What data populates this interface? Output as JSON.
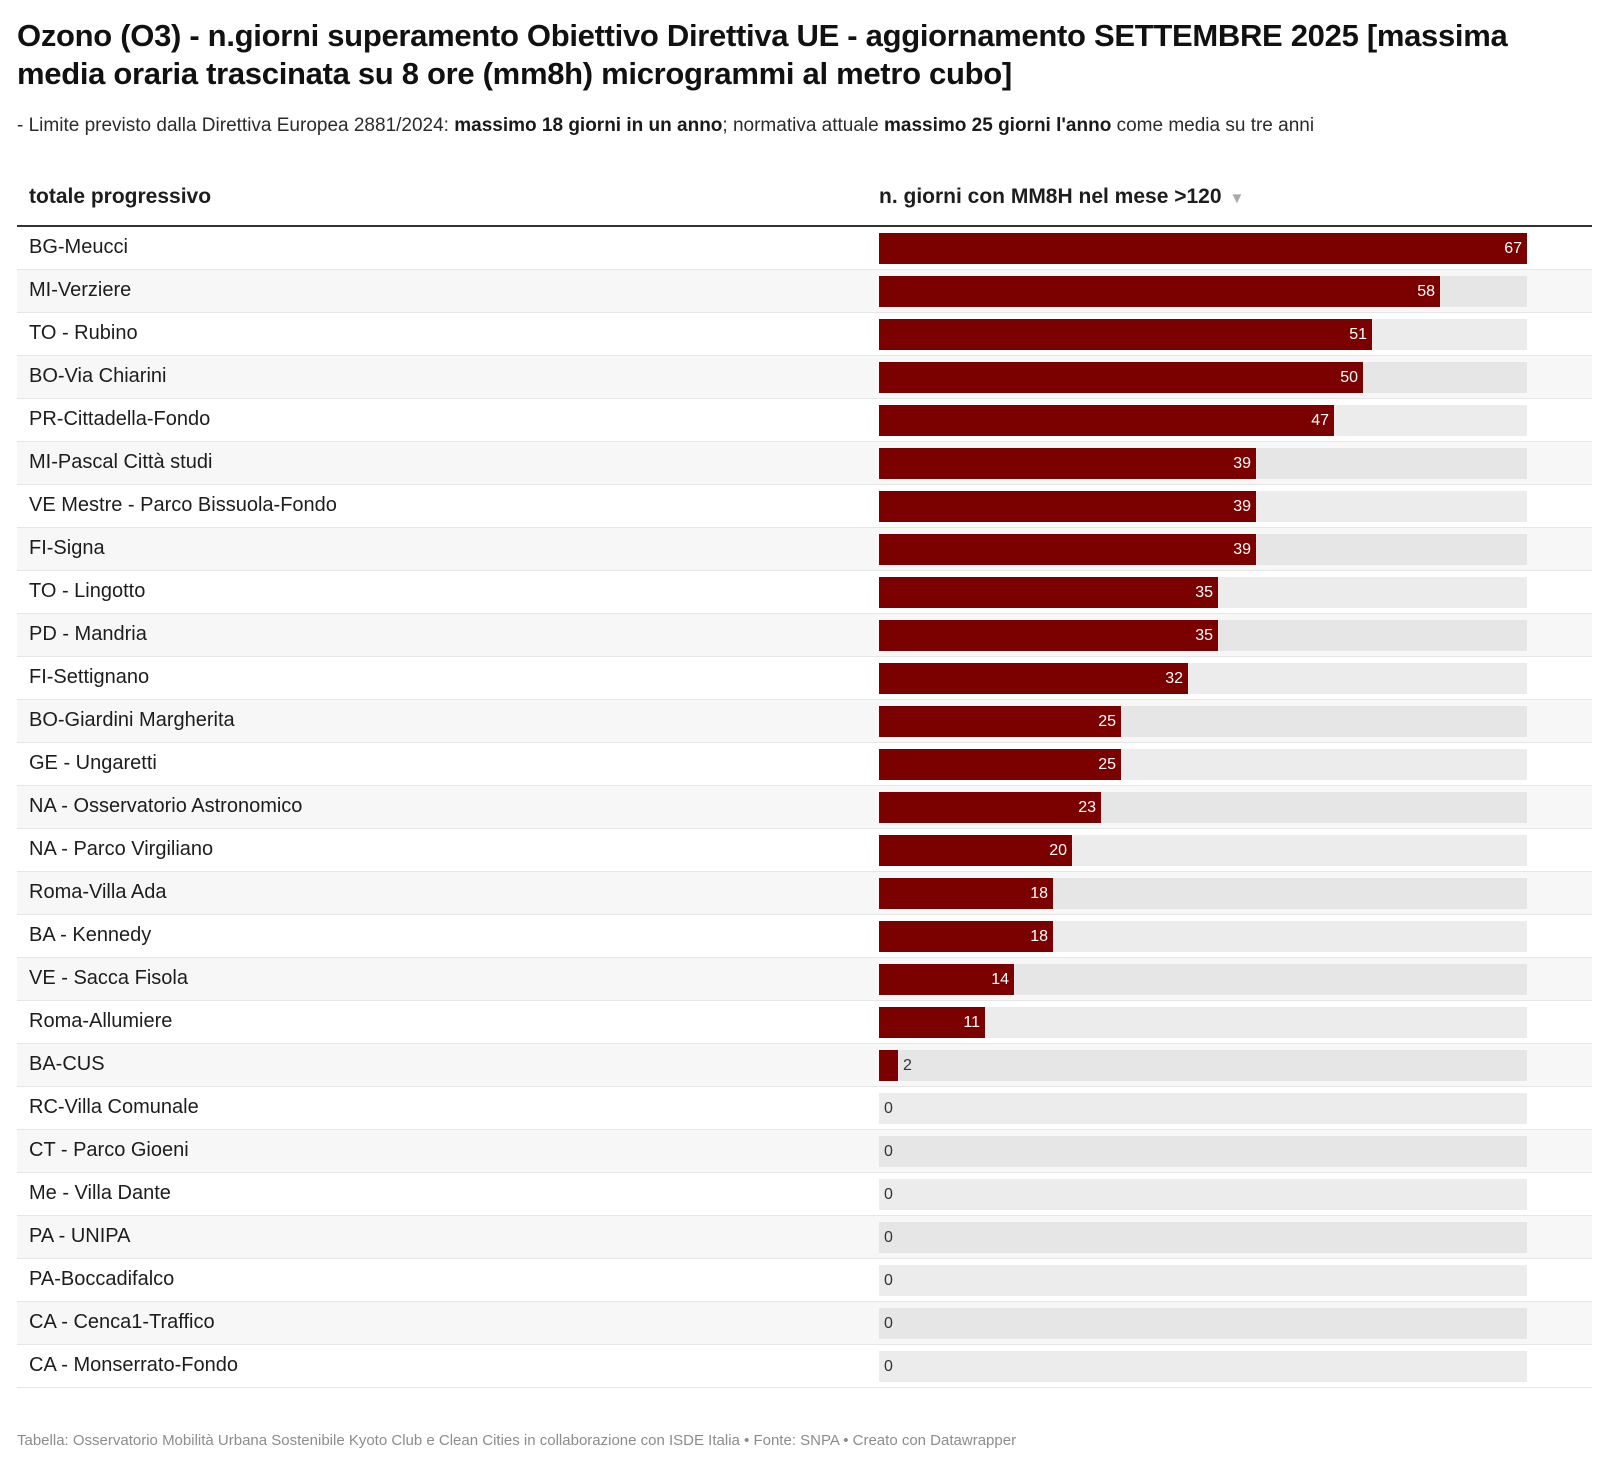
{
  "header": {
    "title": "Ozono (O3) - n.giorni superamento Obiettivo Direttiva UE - aggiornamento SETTEMBRE 2025 [massima media oraria trascinata su 8 ore (mm8h) microgrammi al metro cubo]",
    "subtitle": {
      "part1": "- Limite previsto dalla Direttiva Europea 2881/2024: ",
      "bold1": "massimo 18 giorni in un anno",
      "part2": "; normativa attuale ",
      "bold2": "massimo 25 giorni l'anno",
      "part3": " come media su tre anni"
    }
  },
  "colors": {
    "bar": "#7b0000",
    "track": "#ececec"
  },
  "chart_data": {
    "type": "table",
    "subtype": "bar-column-table",
    "columns": [
      "totale progressivo",
      "n. giorni con MM8H nel mese >120"
    ],
    "sort": {
      "column": "n. giorni con MM8H nel mese >120",
      "direction": "descending",
      "icon": "sort-down-triangle"
    },
    "bar_max": 67,
    "rows": [
      {
        "name": "BG-Meucci",
        "value": 67
      },
      {
        "name": "MI-Verziere",
        "value": 58
      },
      {
        "name": "TO - Rubino",
        "value": 51
      },
      {
        "name": "BO-Via Chiarini",
        "value": 50
      },
      {
        "name": "PR-Cittadella-Fondo",
        "value": 47
      },
      {
        "name": "MI-Pascal Città studi",
        "value": 39
      },
      {
        "name": "VE Mestre - Parco Bissuola-Fondo",
        "value": 39
      },
      {
        "name": "FI-Signa",
        "value": 39
      },
      {
        "name": "TO - Lingotto",
        "value": 35
      },
      {
        "name": "PD - Mandria",
        "value": 35
      },
      {
        "name": "FI-Settignano",
        "value": 32
      },
      {
        "name": "BO-Giardini Margherita",
        "value": 25
      },
      {
        "name": "GE - Ungaretti",
        "value": 25
      },
      {
        "name": "NA - Osservatorio Astronomico",
        "value": 23
      },
      {
        "name": "NA - Parco Virgiliano",
        "value": 20
      },
      {
        "name": "Roma-Villa Ada",
        "value": 18
      },
      {
        "name": "BA - Kennedy",
        "value": 18
      },
      {
        "name": "VE - Sacca Fisola",
        "value": 14
      },
      {
        "name": "Roma-Allumiere",
        "value": 11
      },
      {
        "name": "BA-CUS",
        "value": 2
      },
      {
        "name": "RC-Villa Comunale",
        "value": 0
      },
      {
        "name": "CT - Parco Gioeni",
        "value": 0
      },
      {
        "name": "Me - Villa Dante",
        "value": 0
      },
      {
        "name": "PA - UNIPA",
        "value": 0
      },
      {
        "name": "PA-Boccadifalco",
        "value": 0
      },
      {
        "name": "CA - Cenca1-Traffico",
        "value": 0
      },
      {
        "name": "CA - Monserrato-Fondo",
        "value": 0
      }
    ]
  },
  "footer": {
    "text": "Tabella: Osservatorio Mobilità Urbana Sostenibile Kyoto Club e Clean Cities in collaborazione con ISDE Italia • Fonte: SNPA • Creato con Datawrapper"
  }
}
